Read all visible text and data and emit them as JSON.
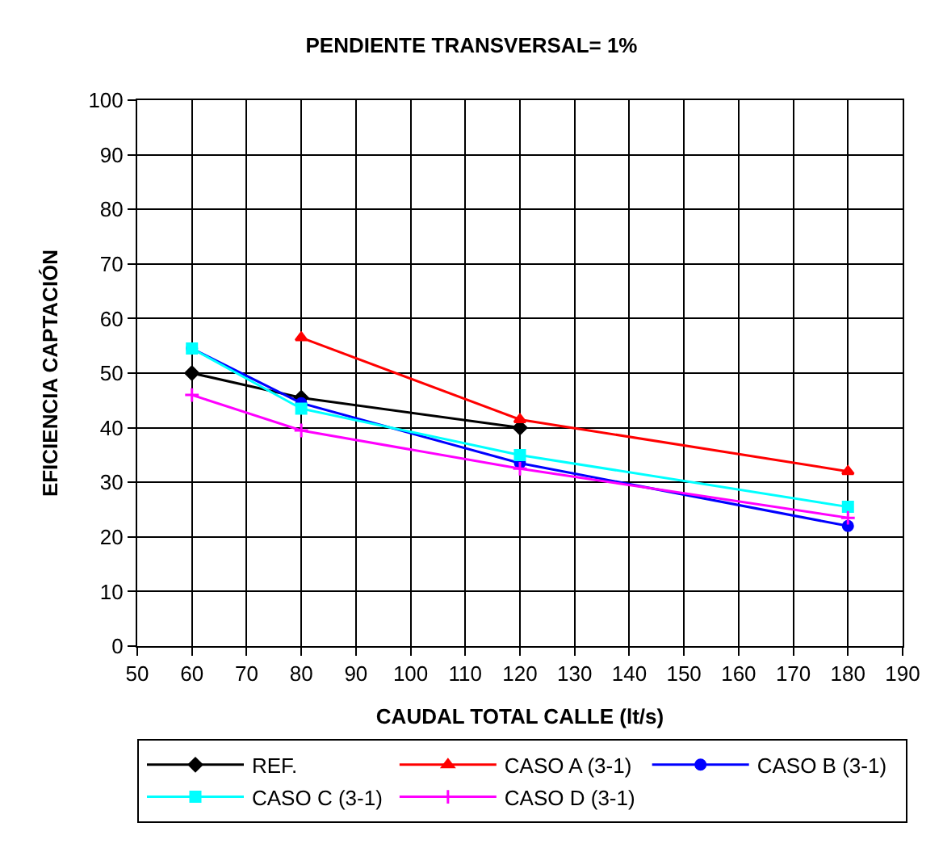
{
  "chart_data": {
    "type": "line",
    "title": "PENDIENTE TRANSVERSAL= 1%",
    "xlabel": "CAUDAL TOTAL CALLE (lt/s)",
    "ylabel": "EFICIENCIA CAPTACIÓN",
    "xlim": [
      50,
      190
    ],
    "xticks": [
      50,
      60,
      70,
      80,
      90,
      100,
      110,
      120,
      130,
      140,
      150,
      160,
      170,
      180,
      190
    ],
    "ylim": [
      0,
      100
    ],
    "yticks": [
      0,
      10,
      20,
      30,
      40,
      50,
      60,
      70,
      80,
      90,
      100
    ],
    "grid": true,
    "legend": "bottom",
    "line_style": "solid",
    "series": [
      {
        "name": "REF.",
        "color": "#000000",
        "marker": "diamond",
        "x": [
          60,
          80,
          120
        ],
        "values": [
          50,
          45.5,
          40
        ]
      },
      {
        "name": "CASO A (3-1)",
        "color": "#ff0000",
        "marker": "triangle",
        "x": [
          80,
          120,
          180
        ],
        "values": [
          56.5,
          41.5,
          32
        ]
      },
      {
        "name": "CASO B (3-1)",
        "color": "#0000ff",
        "marker": "circle",
        "x": [
          60,
          80,
          120,
          180
        ],
        "values": [
          54.5,
          44.5,
          33.5,
          22
        ]
      },
      {
        "name": "CASO C (3-1)",
        "color": "#00ffff",
        "marker": "square",
        "x": [
          60,
          80,
          120,
          180
        ],
        "values": [
          54.5,
          43.5,
          35,
          25.5
        ]
      },
      {
        "name": "CASO D (3-1)",
        "color": "#ff00ff",
        "marker": "cross",
        "x": [
          60,
          80,
          120,
          180
        ],
        "values": [
          46,
          39.5,
          32.5,
          23.5
        ]
      }
    ]
  }
}
